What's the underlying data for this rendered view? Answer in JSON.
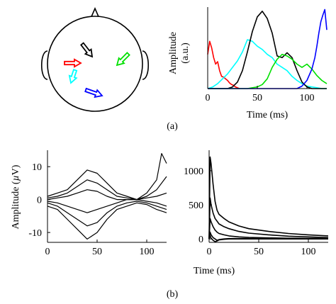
{
  "panel_labels": [
    "(a)",
    "(b)"
  ],
  "head_diagram": {
    "arrows": [
      {
        "color": "#000000",
        "direction": "down-right"
      },
      {
        "color": "#ff0000",
        "direction": "right"
      },
      {
        "color": "#00e000",
        "direction": "down-left"
      },
      {
        "color": "#00ffff",
        "direction": "down-left"
      },
      {
        "color": "#0000ff",
        "direction": "right"
      }
    ]
  },
  "chart_data": [
    {
      "type": "line",
      "xlabel": "Time (ms)",
      "ylabel": "Amplitude (a.u.)",
      "ylabel_lines": [
        "Amplitude",
        "(a.u.)"
      ],
      "xlim": [
        0,
        120
      ],
      "ylim": [
        0,
        1.0
      ],
      "xticks": [
        0,
        50,
        100
      ],
      "yticks": [],
      "grid": false,
      "series": [
        {
          "color": "#ff0000",
          "x": [
            0,
            2,
            4,
            6,
            8,
            10,
            12,
            14,
            16,
            18,
            20,
            22,
            24,
            26,
            28,
            30,
            32
          ],
          "y": [
            0.42,
            0.58,
            0.5,
            0.38,
            0.3,
            0.33,
            0.22,
            0.15,
            0.14,
            0.12,
            0.1,
            0.07,
            0.05,
            0.04,
            0.02,
            0.01,
            0.0
          ]
        },
        {
          "color": "#00ffff",
          "x": [
            0,
            5,
            10,
            15,
            20,
            25,
            30,
            35,
            40,
            45,
            50,
            55,
            60,
            65,
            70,
            75,
            80,
            85,
            90,
            95,
            100,
            105,
            110,
            115,
            120
          ],
          "y": [
            0.0,
            0.02,
            0.06,
            0.12,
            0.18,
            0.26,
            0.34,
            0.45,
            0.6,
            0.58,
            0.52,
            0.48,
            0.42,
            0.38,
            0.3,
            0.26,
            0.22,
            0.15,
            0.1,
            0.06,
            0.03,
            0.02,
            0.01,
            0.0,
            0.0
          ]
        },
        {
          "color": "#000000",
          "x": [
            0,
            20,
            25,
            30,
            35,
            40,
            45,
            50,
            55,
            60,
            65,
            70,
            75,
            80,
            85,
            90,
            95,
            100,
            105,
            110,
            120
          ],
          "y": [
            0.0,
            0.0,
            0.02,
            0.08,
            0.22,
            0.45,
            0.7,
            0.88,
            0.95,
            0.86,
            0.68,
            0.4,
            0.38,
            0.44,
            0.38,
            0.22,
            0.08,
            0.02,
            0.0,
            0.0,
            0.0
          ]
        },
        {
          "color": "#00e000",
          "x": [
            0,
            30,
            40,
            50,
            55,
            60,
            65,
            70,
            75,
            80,
            85,
            90,
            95,
            100,
            105,
            110,
            115,
            120
          ],
          "y": [
            0.0,
            0.0,
            0.0,
            0.02,
            0.05,
            0.12,
            0.26,
            0.36,
            0.42,
            0.4,
            0.36,
            0.3,
            0.26,
            0.3,
            0.24,
            0.16,
            0.1,
            0.06
          ]
        },
        {
          "color": "#0000ff",
          "x": [
            0,
            80,
            90,
            95,
            100,
            105,
            108,
            110,
            112,
            114,
            116,
            118,
            120
          ],
          "y": [
            0.0,
            0.0,
            0.0,
            0.03,
            0.1,
            0.24,
            0.38,
            0.52,
            0.68,
            0.82,
            0.9,
            0.97,
            0.72
          ]
        }
      ]
    },
    {
      "type": "line",
      "xlabel": "",
      "ylabel": "Amplitude (µV)",
      "ylabel_parts": [
        "Amplitude (",
        "µ",
        "V)"
      ],
      "xlim": [
        0,
        120
      ],
      "ylim": [
        -13,
        15
      ],
      "xticks": [
        0,
        50,
        100
      ],
      "yticks": [
        -10,
        0,
        10
      ],
      "grid": false,
      "series": [
        {
          "color": "#000000",
          "x": [
            0,
            10,
            20,
            30,
            40,
            50,
            60,
            70,
            80,
            90,
            100,
            110,
            115,
            120
          ],
          "y": [
            1,
            2,
            3,
            6,
            9,
            8,
            5,
            2,
            1,
            0,
            2,
            6,
            14,
            11
          ]
        },
        {
          "color": "#000000",
          "x": [
            0,
            10,
            20,
            30,
            40,
            50,
            60,
            70,
            80,
            90,
            100,
            110,
            120
          ],
          "y": [
            0.5,
            1,
            2,
            4,
            6,
            5,
            3,
            1,
            0.5,
            0,
            1,
            3,
            7
          ]
        },
        {
          "color": "#000000",
          "x": [
            0,
            10,
            20,
            30,
            40,
            50,
            60,
            70,
            80,
            90,
            100,
            110,
            120
          ],
          "y": [
            0,
            0.5,
            1,
            2,
            3,
            2.5,
            1,
            0,
            0,
            0,
            0.5,
            1,
            2
          ]
        },
        {
          "color": "#000000",
          "x": [
            0,
            10,
            20,
            30,
            40,
            50,
            60,
            70,
            80,
            90,
            100,
            110,
            120
          ],
          "y": [
            -0.5,
            -1,
            -2,
            -3,
            -4,
            -3,
            -2,
            -1,
            0,
            0,
            -0.5,
            -1,
            -2
          ]
        },
        {
          "color": "#000000",
          "x": [
            0,
            10,
            20,
            30,
            40,
            50,
            60,
            70,
            80,
            90,
            100,
            110,
            120
          ],
          "y": [
            -1,
            -2,
            -4,
            -6,
            -8,
            -7,
            -4,
            -2,
            -1,
            -0.5,
            -1,
            -2,
            -3
          ]
        },
        {
          "color": "#000000",
          "x": [
            0,
            10,
            20,
            30,
            40,
            50,
            60,
            70,
            80,
            90,
            100,
            110,
            120
          ],
          "y": [
            -2,
            -3,
            -6,
            -9,
            -12,
            -10,
            -6,
            -3,
            -2,
            -1,
            -1.5,
            -3,
            -4
          ]
        }
      ]
    },
    {
      "type": "line",
      "xlabel": "",
      "ylabel": "",
      "xlim": [
        0,
        120
      ],
      "ylim": [
        -50,
        1300
      ],
      "xticks": [
        0,
        50,
        100
      ],
      "yticks": [
        0,
        500,
        1000
      ],
      "grid": false,
      "series": [
        {
          "color": "#000000",
          "x": [
            0,
            1,
            2,
            4,
            6,
            8,
            10,
            15,
            20,
            30,
            40,
            60,
            80,
            100,
            120
          ],
          "y": [
            0,
            1200,
            1100,
            800,
            550,
            420,
            360,
            300,
            250,
            190,
            150,
            110,
            80,
            60,
            45
          ]
        },
        {
          "color": "#000000",
          "x": [
            0,
            1,
            2,
            4,
            6,
            8,
            10,
            15,
            20,
            30,
            40,
            60,
            80,
            100,
            120
          ],
          "y": [
            0,
            600,
            500,
            380,
            300,
            260,
            220,
            180,
            150,
            110,
            85,
            60,
            40,
            30,
            20
          ]
        },
        {
          "color": "#000000",
          "x": [
            0,
            1,
            2,
            4,
            6,
            8,
            10,
            15,
            20,
            30,
            40,
            60,
            80,
            100,
            120
          ],
          "y": [
            0,
            300,
            250,
            180,
            130,
            100,
            80,
            60,
            45,
            30,
            22,
            15,
            10,
            8,
            6
          ]
        },
        {
          "color": "#000000",
          "x": [
            0,
            1,
            2,
            4,
            6,
            8,
            10,
            15,
            20,
            30,
            40,
            60,
            80,
            100,
            120
          ],
          "y": [
            0,
            100,
            60,
            20,
            0,
            -20,
            -10,
            0,
            5,
            5,
            5,
            3,
            3,
            2,
            2
          ]
        },
        {
          "color": "#000000",
          "x": [
            0,
            1,
            2,
            4,
            6,
            8,
            10,
            15,
            20,
            30,
            40,
            60,
            80,
            100,
            120
          ],
          "y": [
            0,
            50,
            10,
            -20,
            -40,
            -30,
            -15,
            -5,
            0,
            0,
            0,
            0,
            0,
            0,
            0
          ]
        }
      ]
    }
  ],
  "shared_xlabel": "Time (ms)"
}
